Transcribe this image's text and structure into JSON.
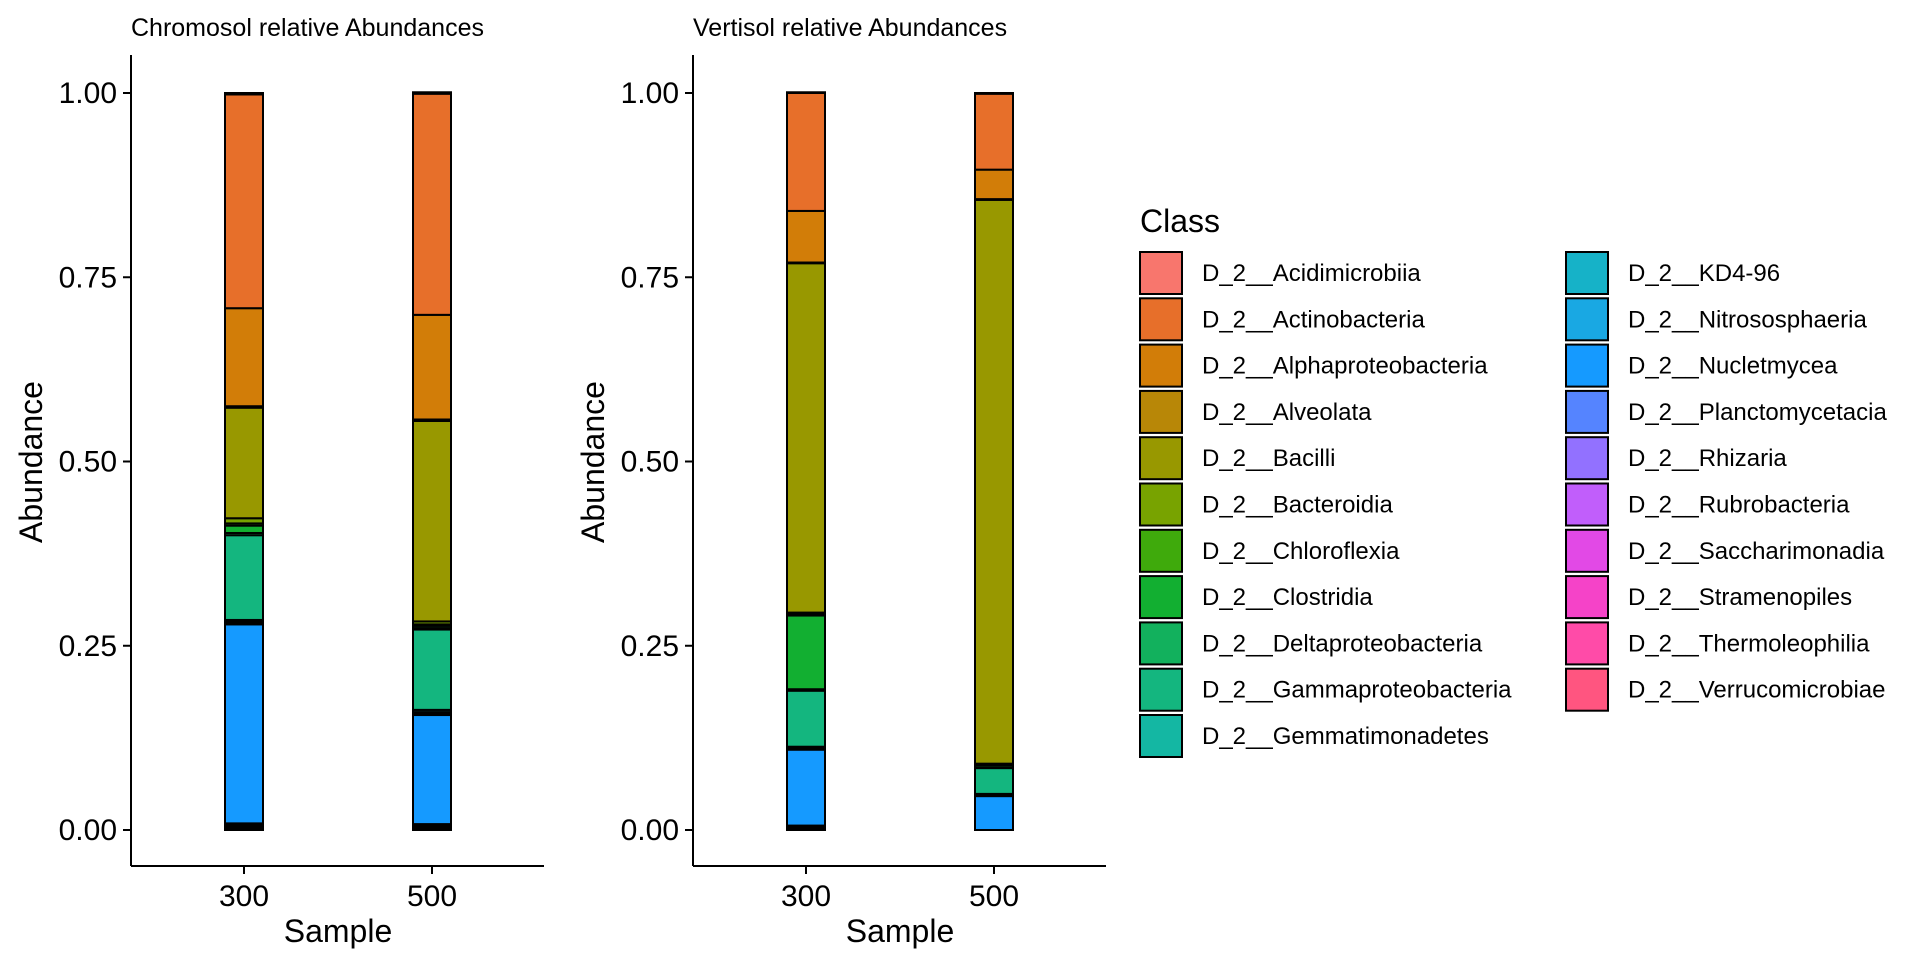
{
  "legend": {
    "title": "Class",
    "items": [
      {
        "label": "D_2__Acidimicrobiia",
        "color": "#F8766D"
      },
      {
        "label": "D_2__Actinobacteria",
        "color": "#E76F2A"
      },
      {
        "label": "D_2__Alphaproteobacteria",
        "color": "#D27D08"
      },
      {
        "label": "D_2__Alveolata",
        "color": "#B88707"
      },
      {
        "label": "D_2__Bacilli",
        "color": "#989800"
      },
      {
        "label": "D_2__Bacteroidia",
        "color": "#78A300"
      },
      {
        "label": "D_2__Chloroflexia",
        "color": "#3FAA0C"
      },
      {
        "label": "D_2__Clostridia",
        "color": "#12AF31"
      },
      {
        "label": "D_2__Deltaproteobacteria",
        "color": "#12B15D"
      },
      {
        "label": "D_2__Gammaproteobacteria",
        "color": "#14B67F"
      },
      {
        "label": "D_2__Gemmatimonadetes",
        "color": "#14B7A3"
      },
      {
        "label": "D_2__KD4-96",
        "color": "#16B2C8"
      },
      {
        "label": "D_2__Nitrososphaeria",
        "color": "#19A8E3"
      },
      {
        "label": "D_2__Nucletmycea",
        "color": "#159AFF"
      },
      {
        "label": "D_2__Planctomycetacia",
        "color": "#5584FF"
      },
      {
        "label": "D_2__Rhizaria",
        "color": "#9271FF"
      },
      {
        "label": "D_2__Rubrobacteria",
        "color": "#C15EFB"
      },
      {
        "label": "D_2__Saccharimonadia",
        "color": "#E249E6"
      },
      {
        "label": "D_2__Stramenopiles",
        "color": "#F543C8"
      },
      {
        "label": "D_2__Thermoleophilia",
        "color": "#FF4BA8"
      },
      {
        "label": "D_2__Verrucomicrobiae",
        "color": "#FF5580"
      }
    ]
  },
  "chart_data": [
    {
      "type": "bar",
      "stacked": true,
      "title": "Chromosol relative Abundances",
      "xlabel": "Sample",
      "ylabel": "Abundance",
      "categories": [
        "300",
        "500"
      ],
      "ylim": [
        0,
        1
      ],
      "yticks": [
        0,
        0.25,
        0.5,
        0.75,
        1
      ],
      "ytick_labels": [
        "0.00",
        "0.25",
        "0.50",
        "0.75",
        "1.00"
      ],
      "grid": false,
      "legend_position": "right",
      "series": [
        {
          "name": "D_2__Acidimicrobiia",
          "values": [
            0.002,
            0.002
          ]
        },
        {
          "name": "D_2__Actinobacteria",
          "values": [
            0.29,
            0.3
          ]
        },
        {
          "name": "D_2__Alphaproteobacteria",
          "values": [
            0.133,
            0.142
          ]
        },
        {
          "name": "D_2__Alveolata",
          "values": [
            0.002,
            0.002
          ]
        },
        {
          "name": "D_2__Bacilli",
          "values": [
            0.15,
            0.272
          ]
        },
        {
          "name": "D_2__Bacteroidia",
          "values": [
            0.007,
            0.004
          ]
        },
        {
          "name": "D_2__Chloroflexia",
          "values": [
            0.003,
            0.002
          ]
        },
        {
          "name": "D_2__Clostridia",
          "values": [
            0.01,
            0.003
          ]
        },
        {
          "name": "D_2__Deltaproteobacteria",
          "values": [
            0.003,
            0.002
          ]
        },
        {
          "name": "D_2__Gammaproteobacteria",
          "values": [
            0.115,
            0.109
          ]
        },
        {
          "name": "D_2__Gemmatimonadetes",
          "values": [
            0.002,
            0.003
          ]
        },
        {
          "name": "D_2__KD4-96",
          "values": [
            0.002,
            0.002
          ]
        },
        {
          "name": "D_2__Nitrososphaeria",
          "values": [
            0.002,
            0.002
          ]
        },
        {
          "name": "D_2__Nucletmycea",
          "values": [
            0.27,
            0.148
          ]
        },
        {
          "name": "D_2__Planctomycetacia",
          "values": [
            0.001,
            0.001
          ]
        },
        {
          "name": "D_2__Rhizaria",
          "values": [
            0.001,
            0.001
          ]
        },
        {
          "name": "D_2__Rubrobacteria",
          "values": [
            0.001,
            0.001
          ]
        },
        {
          "name": "D_2__Saccharimonadia",
          "values": [
            0.002,
            0.002
          ]
        },
        {
          "name": "D_2__Stramenopiles",
          "values": [
            0.001,
            0.001
          ]
        },
        {
          "name": "D_2__Thermoleophilia",
          "values": [
            0.002,
            0.001
          ]
        },
        {
          "name": "D_2__Verrucomicrobiae",
          "values": [
            0.001,
            0.001
          ]
        }
      ]
    },
    {
      "type": "bar",
      "stacked": true,
      "title": "Vertisol relative Abundances",
      "xlabel": "Sample",
      "ylabel": "Abundance",
      "categories": [
        "300",
        "500"
      ],
      "ylim": [
        0,
        1
      ],
      "yticks": [
        0,
        0.25,
        0.5,
        0.75,
        1
      ],
      "ytick_labels": [
        "0.00",
        "0.25",
        "0.50",
        "0.75",
        "1.00"
      ],
      "grid": false,
      "legend_position": "right",
      "series": [
        {
          "name": "D_2__Acidimicrobiia",
          "values": [
            0.001,
            0.001
          ]
        },
        {
          "name": "D_2__Actinobacteria",
          "values": [
            0.16,
            0.103
          ]
        },
        {
          "name": "D_2__Alphaproteobacteria",
          "values": [
            0.07,
            0.04
          ]
        },
        {
          "name": "D_2__Alveolata",
          "values": [
            0.001,
            0.001
          ]
        },
        {
          "name": "D_2__Bacilli",
          "values": [
            0.474,
            0.765
          ]
        },
        {
          "name": "D_2__Bacteroidia",
          "values": [
            0.002,
            0.001
          ]
        },
        {
          "name": "D_2__Chloroflexia",
          "values": [
            0.002,
            0.001
          ]
        },
        {
          "name": "D_2__Clostridia",
          "values": [
            0.1,
            0.003
          ]
        },
        {
          "name": "D_2__Deltaproteobacteria",
          "values": [
            0.002,
            0.001
          ]
        },
        {
          "name": "D_2__Gammaproteobacteria",
          "values": [
            0.076,
            0.035
          ]
        },
        {
          "name": "D_2__Gemmatimonadetes",
          "values": [
            0.002,
            0.001
          ]
        },
        {
          "name": "D_2__KD4-96",
          "values": [
            0.001,
            0.001
          ]
        },
        {
          "name": "D_2__Nitrososphaeria",
          "values": [
            0.001,
            0.001
          ]
        },
        {
          "name": "D_2__Nucletmycea",
          "values": [
            0.103,
            0.046
          ]
        },
        {
          "name": "D_2__Planctomycetacia",
          "values": [
            0.001,
            0.0
          ]
        },
        {
          "name": "D_2__Rhizaria",
          "values": [
            0.001,
            0.0
          ]
        },
        {
          "name": "D_2__Rubrobacteria",
          "values": [
            0.001,
            0.0
          ]
        },
        {
          "name": "D_2__Saccharimonadia",
          "values": [
            0.001,
            0.0
          ]
        },
        {
          "name": "D_2__Stramenopiles",
          "values": [
            0.0,
            0.0
          ]
        },
        {
          "name": "D_2__Thermoleophilia",
          "values": [
            0.001,
            0.0
          ]
        },
        {
          "name": "D_2__Verrucomicrobiae",
          "values": [
            0.001,
            0.0
          ]
        }
      ]
    }
  ]
}
